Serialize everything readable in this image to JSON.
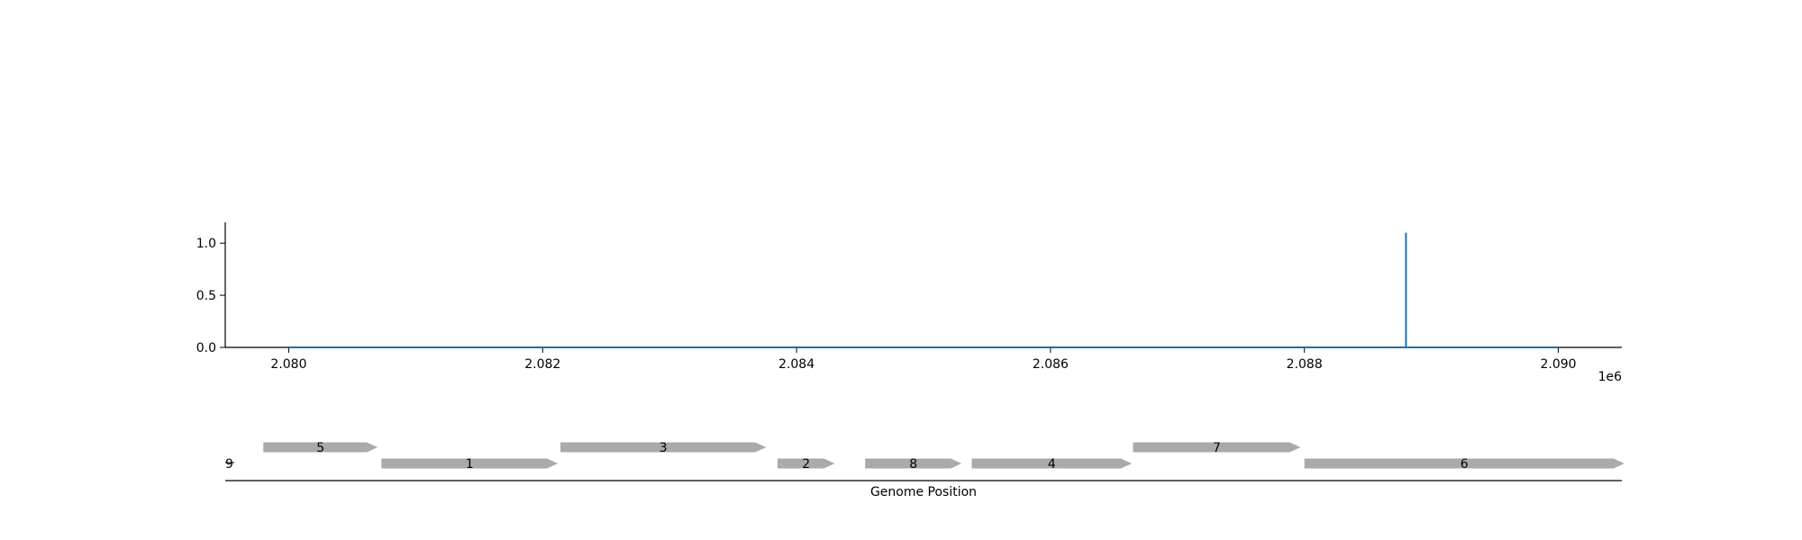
{
  "chart_data": [
    {
      "type": "line",
      "title": "",
      "xlabel": "",
      "ylabel": "",
      "x_offset_label": "1e6",
      "xlim": [
        2.0795,
        2.0905
      ],
      "ylim": [
        0.0,
        1.2
      ],
      "xticks": [
        2.08,
        2.082,
        2.084,
        2.086,
        2.088,
        2.09
      ],
      "xtick_labels": [
        "2.080",
        "2.082",
        "2.084",
        "2.086",
        "2.088",
        "2.090"
      ],
      "yticks": [
        0.0,
        0.5,
        1.0
      ],
      "ytick_labels": [
        "0.0",
        "0.5",
        "1.0"
      ],
      "grid": false,
      "series": [
        {
          "color": "#1f6fb4",
          "x": [
            2.08,
            2.0888,
            2.0888,
            2.0888,
            2.09
          ],
          "y": [
            0.0,
            0.0,
            1.1,
            0.0,
            0.0
          ]
        }
      ]
    },
    {
      "type": "gene_track",
      "xlabel": "Genome Position",
      "xlim": [
        2.0795,
        2.0905
      ],
      "stray_label": "9",
      "gene_color": "#aaaaaa",
      "genes": [
        {
          "label": "5",
          "start": 2.0798,
          "end": 2.0807,
          "row": 1
        },
        {
          "label": "1",
          "start": 2.08073,
          "end": 2.08212,
          "row": 0
        },
        {
          "label": "3",
          "start": 2.08214,
          "end": 2.08376,
          "row": 1
        },
        {
          "label": "2",
          "start": 2.08385,
          "end": 2.0843,
          "row": 0
        },
        {
          "label": "8",
          "start": 2.08454,
          "end": 2.0853,
          "row": 0
        },
        {
          "label": "4",
          "start": 2.08538,
          "end": 2.08664,
          "row": 0
        },
        {
          "label": "7",
          "start": 2.08665,
          "end": 2.08797,
          "row": 1
        },
        {
          "label": "6",
          "start": 2.088,
          "end": 2.09052,
          "row": 0
        }
      ]
    }
  ]
}
